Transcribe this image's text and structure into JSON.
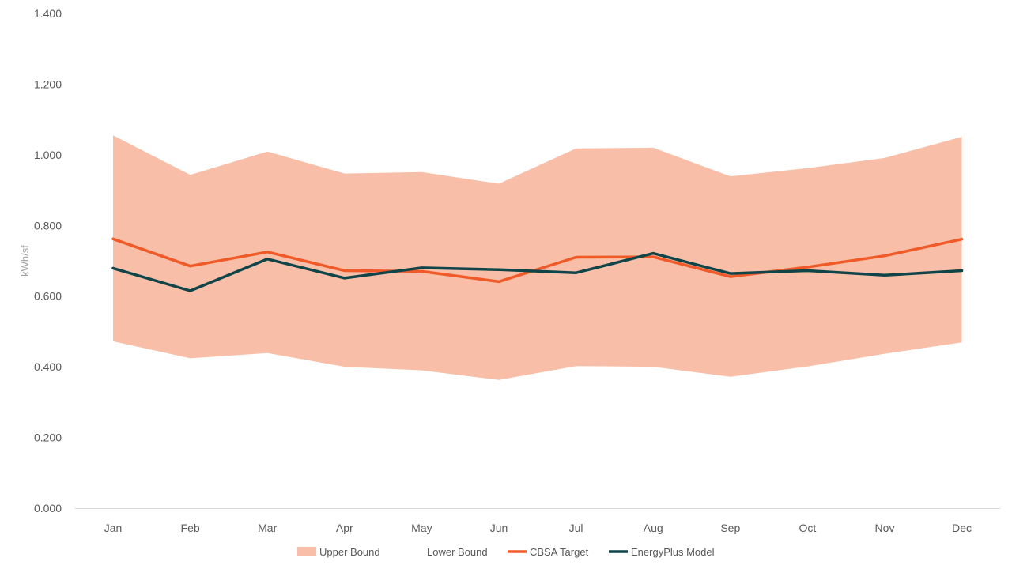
{
  "chart_data": {
    "type": "line",
    "categories": [
      "Jan",
      "Feb",
      "Mar",
      "Apr",
      "May",
      "Jun",
      "Jul",
      "Aug",
      "Sep",
      "Oct",
      "Nov",
      "Dec"
    ],
    "ylabel": "kWh/sf",
    "ylim": [
      0,
      1.4
    ],
    "yticks": [
      "0.000",
      "0.200",
      "0.400",
      "0.600",
      "0.800",
      "1.000",
      "1.200",
      "1.400"
    ],
    "ytick_values": [
      0,
      0.2,
      0.4,
      0.6,
      0.8,
      1.0,
      1.2,
      1.4
    ],
    "grid": false,
    "legend_position": "bottom",
    "series": [
      {
        "name": "Upper Bound",
        "kind": "area-band-top",
        "color": "#f8bea7",
        "values": [
          1.055,
          0.943,
          1.009,
          0.947,
          0.951,
          0.918,
          1.018,
          1.02,
          0.939,
          0.962,
          0.991,
          1.051
        ]
      },
      {
        "name": "Lower Bound",
        "kind": "area-band-bottom",
        "color": "#ffffff",
        "values": [
          0.472,
          0.424,
          0.439,
          0.4,
          0.39,
          0.363,
          0.402,
          0.4,
          0.372,
          0.401,
          0.437,
          0.469
        ]
      },
      {
        "name": "CBSA Target",
        "kind": "line",
        "color": "#f05a28",
        "values": [
          0.762,
          0.685,
          0.725,
          0.672,
          0.67,
          0.641,
          0.71,
          0.711,
          0.655,
          0.682,
          0.714,
          0.761
        ]
      },
      {
        "name": "EnergyPlus Model",
        "kind": "line",
        "color": "#0f4549",
        "values": [
          0.679,
          0.615,
          0.705,
          0.651,
          0.68,
          0.675,
          0.666,
          0.721,
          0.664,
          0.672,
          0.659,
          0.672
        ]
      }
    ]
  }
}
